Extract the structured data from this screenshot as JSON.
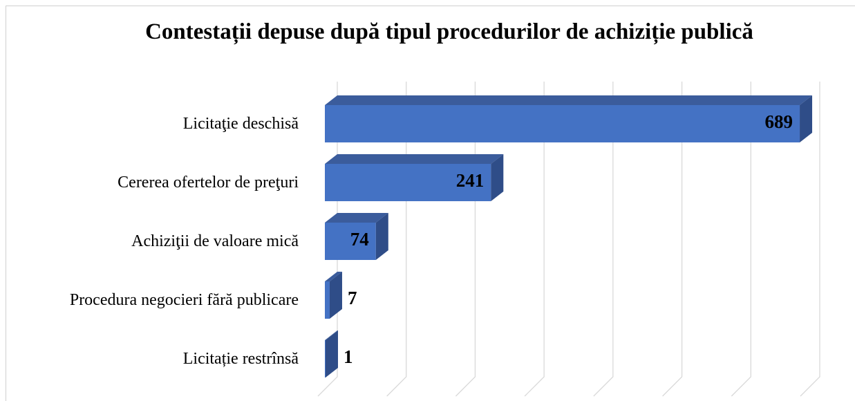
{
  "chart_data": {
    "type": "bar3d_horizontal",
    "title": "Contestații depuse după tipul procedurilor de achiziție publică",
    "categories": [
      "Licitaţie deschisă",
      "Cererea ofertelor de preţuri",
      "Achiziţii de valoare mică",
      "Procedura negocieri fără publicare",
      "Licitație restrînsă"
    ],
    "values": [
      689,
      241,
      74,
      7,
      1
    ],
    "color": "#4472c4",
    "xlim": [
      0,
      700
    ],
    "xticks": [
      0,
      100,
      200,
      300,
      400,
      500,
      600,
      700
    ],
    "grid": true
  }
}
